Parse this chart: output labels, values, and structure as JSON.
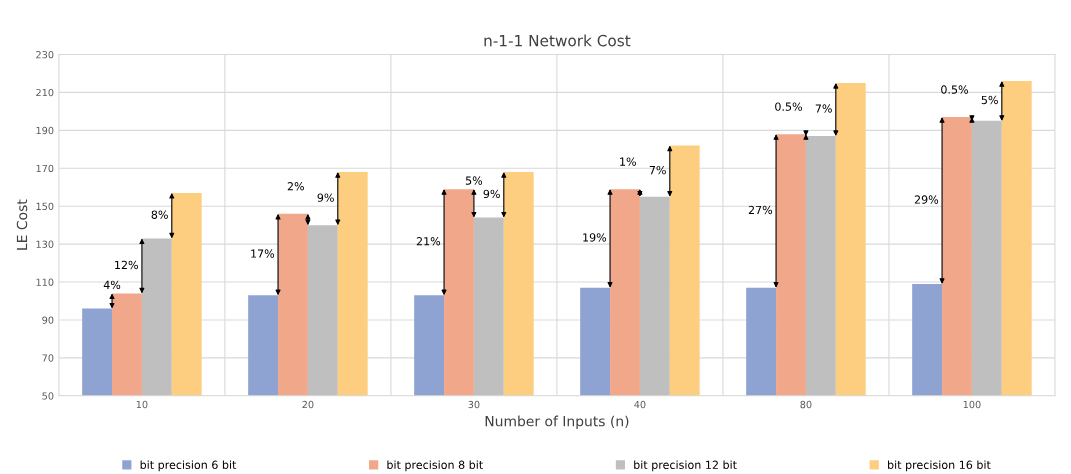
{
  "chart_data": {
    "type": "bar",
    "title": "n-1-1 Network Cost",
    "xlabel": "Number of Inputs (n)",
    "ylabel": "LE Cost",
    "categories": [
      "10",
      "20",
      "30",
      "40",
      "80",
      "100"
    ],
    "series": [
      {
        "name": "bit precision 6 bit",
        "color": "#8fa3d3",
        "values": [
          96,
          103,
          103,
          107,
          107,
          109
        ]
      },
      {
        "name": "bit precision 8 bit",
        "color": "#f0a78a",
        "values": [
          104,
          146,
          159,
          159,
          188,
          197
        ]
      },
      {
        "name": "bit precision 12 bit",
        "color": "#bfbfbf",
        "values": [
          133,
          140,
          144,
          155,
          187,
          195
        ]
      },
      {
        "name": "bit precision 16 bit",
        "color": "#fdcd80",
        "values": [
          157,
          168,
          168,
          182,
          215,
          216
        ]
      }
    ],
    "ylim": [
      50,
      230
    ],
    "yticks": [
      50,
      70,
      90,
      110,
      130,
      150,
      170,
      190,
      210,
      230
    ],
    "grid": true,
    "legend": "bottom",
    "annotations": [
      "4%",
      "12%",
      "8%",
      "17%",
      "2%",
      "9%",
      "21%",
      "5%",
      "9%",
      "19%",
      "1%",
      "7%",
      "27%",
      "0.5%",
      "7%",
      "29%",
      "0.5%",
      "5%"
    ]
  }
}
